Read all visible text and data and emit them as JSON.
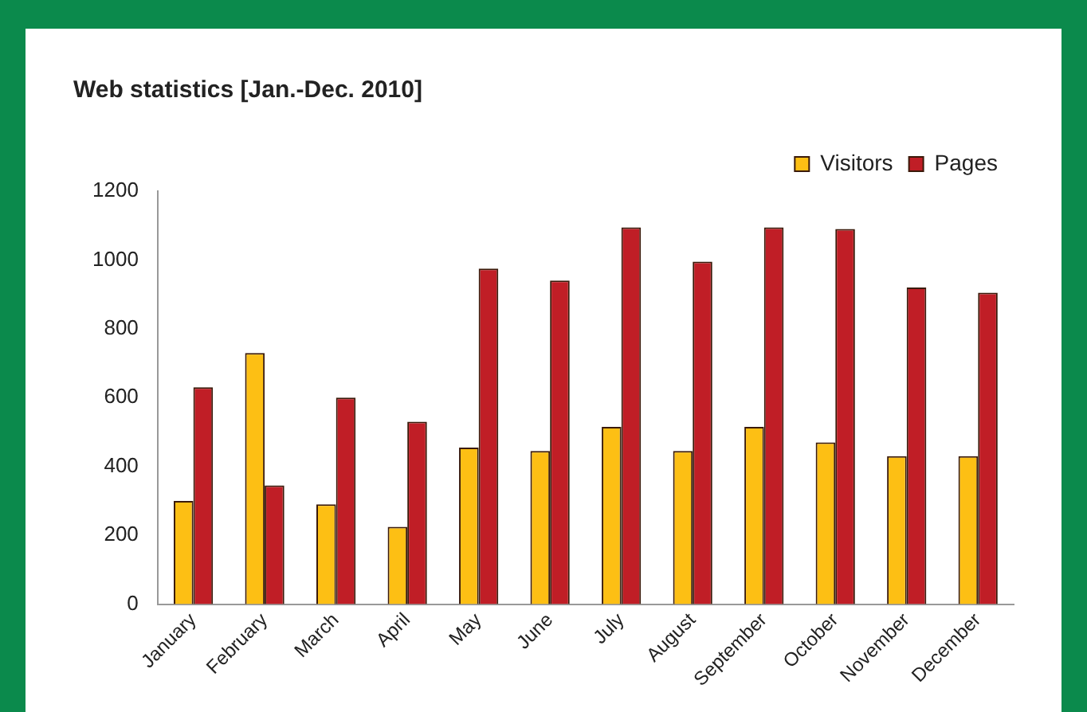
{
  "chart_data": {
    "type": "bar",
    "title": "Web statistics [Jan.-Dec. 2010]",
    "categories": [
      "January",
      "February",
      "March",
      "April",
      "May",
      "June",
      "July",
      "August",
      "September",
      "October",
      "November",
      "December"
    ],
    "series": [
      {
        "name": "Visitors",
        "color": "#fdbf14",
        "values": [
          300,
          730,
          290,
          225,
          455,
          445,
          515,
          445,
          515,
          470,
          430,
          430
        ]
      },
      {
        "name": "Pages",
        "color": "#c01e26",
        "values": [
          630,
          345,
          600,
          530,
          975,
          940,
          1095,
          995,
          1095,
          1090,
          920,
          905
        ]
      }
    ],
    "ylim": [
      0,
      1200
    ],
    "yticks": [
      0,
      200,
      400,
      600,
      800,
      1000,
      1200
    ],
    "grid": false,
    "legend": "top right"
  }
}
